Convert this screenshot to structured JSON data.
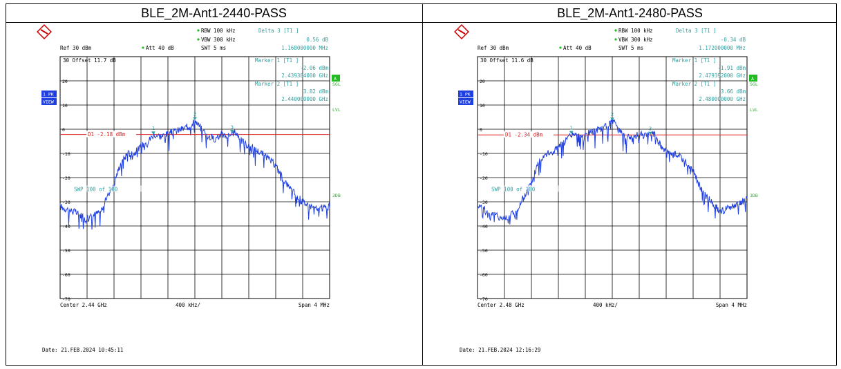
{
  "panels": [
    {
      "title": "BLE_2M-Ant1-2440-PASS",
      "header": {
        "rbw": "RBW 100 kHz",
        "vbw": "VBW 300 kHz",
        "swt": "SWT 5 ms",
        "ref": "Ref  30 dBm",
        "att": "Att  40 dB",
        "delta_label": "Delta 3 [T1 ]",
        "delta_value": "0.56 dB",
        "delta_freq": "1.168000000 MHz"
      },
      "offset": "30 Offset  11.7 dB",
      "marker1_label": "Marker 1 [T1 ]",
      "marker1_value": "-2.06 dBm",
      "marker1_freq": "2.439384000 GHz",
      "marker2_label": "Marker 2 [T1 ]",
      "marker2_value": "3.82 dBm",
      "marker2_freq": "2.440000000 GHz",
      "d1_label": "D1 -2.18 dBm",
      "swp": "SWP   100 of   100",
      "side_left": [
        "1 PK",
        "VIEW"
      ],
      "side_right": [
        "A",
        "SGL",
        "LVL",
        "3DB"
      ],
      "footer_center": "Center  2.44 GHz",
      "footer_div": "400 kHz/",
      "footer_span": "Span  4 MHz",
      "date": "Date: 21.FEB.2024  10:45:11"
    },
    {
      "title": "BLE_2M-Ant1-2480-PASS",
      "header": {
        "rbw": "RBW 100 kHz",
        "vbw": "VBW 300 kHz",
        "swt": "SWT 5 ms",
        "ref": "Ref  30 dBm",
        "att": "Att  40 dB",
        "delta_label": "Delta 3 [T1 ]",
        "delta_value": "-0.34 dB",
        "delta_freq": "1.172000000 MHz"
      },
      "offset": "30 Offset  11.6 dB",
      "marker1_label": "Marker 1 [T1 ]",
      "marker1_value": "-1.91 dBm",
      "marker1_freq": "2.479392000 GHz",
      "marker2_label": "Marker 2 [T1 ]",
      "marker2_value": "3.66 dBm",
      "marker2_freq": "2.480000000 GHz",
      "d1_label": "D1 -2.34 dBm",
      "swp": "SWP   100 of   100",
      "side_left": [
        "1 PK",
        "VIEW"
      ],
      "side_right": [
        "A",
        "SGL",
        "LVL",
        "3DB"
      ],
      "footer_center": "Center  2.48 GHz",
      "footer_div": "400 kHz/",
      "footer_span": "Span  4 MHz",
      "date": "Date: 21.FEB.2024  12:16:29"
    }
  ],
  "colors": {
    "trace": "#1f3fe0",
    "display_line": "#e02020",
    "annotation": "#2ea0a0",
    "status_green": "#22bb22",
    "side_blue": "#1f3fe0",
    "grid": "#000000"
  },
  "chart_data": [
    {
      "type": "line",
      "title": "BLE_2M-Ant1-2440-PASS",
      "xlim": [
        2.438,
        2.442
      ],
      "ylim": [
        -70,
        30
      ],
      "yticks": [
        30,
        20,
        10,
        0,
        -10,
        -20,
        -30,
        -40,
        -50,
        -60,
        -70
      ],
      "display_line_dbm": -2.18,
      "markers": [
        {
          "id": "1",
          "x": 2.439384,
          "y": -2.06
        },
        {
          "id": "2",
          "x": 2.44,
          "y": 3.82
        },
        {
          "id": "3",
          "x": 2.440552,
          "y": -1.5
        }
      ],
      "series": [
        {
          "x": [
            2.438,
            2.4382,
            2.4384,
            2.4386,
            2.4388,
            2.4389,
            2.439,
            2.4391,
            2.4392,
            2.4393,
            2.4394,
            2.4395,
            2.4396,
            2.4397,
            2.4398,
            2.4399,
            2.44,
            2.4401,
            2.4402,
            2.4403,
            2.4404,
            2.4405,
            2.4406,
            2.4407,
            2.4408,
            2.441,
            2.4412,
            2.4413,
            2.4414,
            2.4416,
            2.4418,
            2.442
          ],
          "values": [
            -32,
            -34,
            -37,
            -34,
            -22,
            -14,
            -10,
            -10,
            -7,
            -5,
            -2,
            -3,
            -2,
            -1,
            0,
            1,
            3.8,
            0,
            -3,
            -4,
            -2,
            -3,
            -1,
            -5,
            -7,
            -10,
            -15,
            -20,
            -24,
            -30,
            -33,
            -32
          ]
        }
      ]
    },
    {
      "type": "line",
      "title": "BLE_2M-Ant1-2480-PASS",
      "xlim": [
        2.478,
        2.482
      ],
      "ylim": [
        -70,
        30
      ],
      "yticks": [
        30,
        20,
        10,
        0,
        -10,
        -20,
        -30,
        -40,
        -50,
        -60,
        -70
      ],
      "display_line_dbm": -2.34,
      "markers": [
        {
          "id": "1",
          "x": 2.479392,
          "y": -1.91
        },
        {
          "id": "2",
          "x": 2.48,
          "y": 3.66
        },
        {
          "id": "3",
          "x": 2.480564,
          "y": -2.2
        }
      ],
      "series": [
        {
          "x": [
            2.478,
            2.4782,
            2.4784,
            2.4786,
            2.4788,
            2.4789,
            2.479,
            2.4791,
            2.4792,
            2.4793,
            2.4794,
            2.4795,
            2.4796,
            2.4797,
            2.4798,
            2.4799,
            2.48,
            2.4801,
            2.4802,
            2.4803,
            2.4804,
            2.4805,
            2.4806,
            2.4807,
            2.4808,
            2.481,
            2.4812,
            2.4813,
            2.4814,
            2.4816,
            2.4818,
            2.482
          ],
          "values": [
            -31,
            -35,
            -37,
            -33,
            -22,
            -14,
            -10,
            -10,
            -7,
            -5,
            -2,
            -3,
            -2,
            -1,
            0,
            1,
            3.7,
            0,
            -3,
            -4,
            -2,
            -3,
            -1,
            -6,
            -9,
            -11,
            -17,
            -24,
            -28,
            -34,
            -32,
            -29
          ]
        }
      ]
    }
  ]
}
